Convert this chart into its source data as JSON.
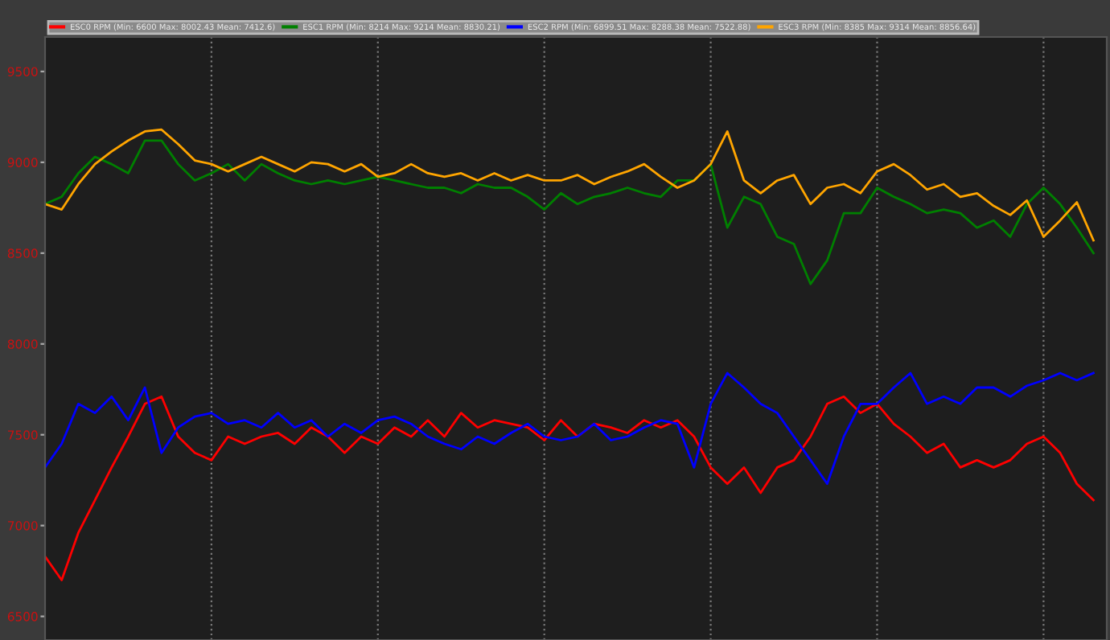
{
  "chart_data": {
    "type": "line",
    "categories": [
      null,
      null,
      null,
      null,
      null,
      null,
      null,
      null,
      null,
      null,
      null,
      null,
      null,
      null,
      null,
      null,
      null,
      null,
      null,
      null,
      null,
      null,
      null,
      null,
      null,
      null,
      null,
      null,
      null,
      null,
      null,
      null,
      null,
      null,
      null,
      null,
      null,
      null,
      null,
      null,
      null,
      null,
      null,
      null,
      null,
      null,
      null,
      null,
      null,
      null,
      null,
      null,
      null,
      null,
      null,
      null,
      null,
      null,
      null,
      null,
      null,
      null,
      null,
      null
    ],
    "series": [
      {
        "name": "ESC0 RPM (Min: 6600 Max: 8002.43 Mean: 7412.6)",
        "color": "#ff0000",
        "values": [
          6830,
          6700,
          6960,
          7140,
          7320,
          7490,
          7670,
          7710,
          7490,
          7400,
          7360,
          7490,
          7450,
          7490,
          7510,
          7450,
          7540,
          7490,
          7400,
          7490,
          7450,
          7540,
          7490,
          7580,
          7490,
          7620,
          7540,
          7580,
          7560,
          7540,
          7470,
          7580,
          7490,
          7560,
          7540,
          7510,
          7580,
          7540,
          7580,
          7490,
          7320,
          7230,
          7320,
          7180,
          7320,
          7360,
          7490,
          7670,
          7710,
          7620,
          7670,
          7560,
          7490,
          7400,
          7450,
          7320,
          7360,
          7320,
          7360,
          7450,
          7490,
          7400,
          7230,
          7140
        ]
      },
      {
        "name": "ESC1 RPM (Min: 8214 Max: 9214 Mean: 8830.21)",
        "color": "#008000",
        "values": [
          8770,
          8810,
          8940,
          9030,
          8990,
          8940,
          9120,
          9120,
          8990,
          8900,
          8940,
          8990,
          8900,
          8990,
          8940,
          8900,
          8880,
          8900,
          8880,
          8900,
          8920,
          8900,
          8880,
          8860,
          8860,
          8830,
          8880,
          8860,
          8860,
          8810,
          8740,
          8830,
          8770,
          8810,
          8830,
          8860,
          8830,
          8810,
          8900,
          8900,
          8990,
          8640,
          8810,
          8770,
          8590,
          8550,
          8330,
          8460,
          8720,
          8720,
          8860,
          8810,
          8770,
          8720,
          8740,
          8720,
          8640,
          8680,
          8590,
          8770,
          8860,
          8770,
          8640,
          8500
        ]
      },
      {
        "name": "ESC2 RPM (Min: 6899.51 Max: 8288.38 Mean: 7522.88)",
        "color": "#0000ff",
        "values": [
          7320,
          7450,
          7670,
          7620,
          7710,
          7580,
          7760,
          7400,
          7540,
          7600,
          7620,
          7560,
          7580,
          7540,
          7620,
          7540,
          7580,
          7490,
          7560,
          7510,
          7580,
          7600,
          7560,
          7490,
          7450,
          7420,
          7490,
          7450,
          7510,
          7560,
          7490,
          7470,
          7490,
          7560,
          7470,
          7490,
          7540,
          7580,
          7560,
          7320,
          7670,
          7840,
          7760,
          7670,
          7620,
          7490,
          7360,
          7230,
          7490,
          7670,
          7670,
          7760,
          7840,
          7670,
          7710,
          7670,
          7760,
          7760,
          7710,
          7770,
          7800,
          7840,
          7800,
          7840
        ]
      },
      {
        "name": "ESC3 RPM (Min: 8385 Max: 9314 Mean: 8856.64)",
        "color": "#ffa500",
        "values": [
          8770,
          8740,
          8880,
          8990,
          9060,
          9120,
          9170,
          9180,
          9100,
          9010,
          8990,
          8950,
          8990,
          9030,
          8990,
          8950,
          9000,
          8990,
          8950,
          8990,
          8920,
          8940,
          8990,
          8940,
          8920,
          8940,
          8900,
          8940,
          8900,
          8930,
          8900,
          8900,
          8930,
          8880,
          8920,
          8950,
          8990,
          8920,
          8860,
          8900,
          8990,
          9170,
          8900,
          8830,
          8900,
          8930,
          8770,
          8860,
          8880,
          8830,
          8950,
          8990,
          8930,
          8850,
          8880,
          8810,
          8830,
          8760,
          8710,
          8790,
          8590,
          8680,
          8780,
          8570
        ]
      }
    ],
    "ylim": [
      6370,
      9690
    ],
    "yticks": [
      6500,
      7000,
      7500,
      8000,
      8500,
      9000,
      9500
    ],
    "tick_labels": "y",
    "grid": "x",
    "legend": "top",
    "line_style": "solid",
    "marker": "none"
  }
}
